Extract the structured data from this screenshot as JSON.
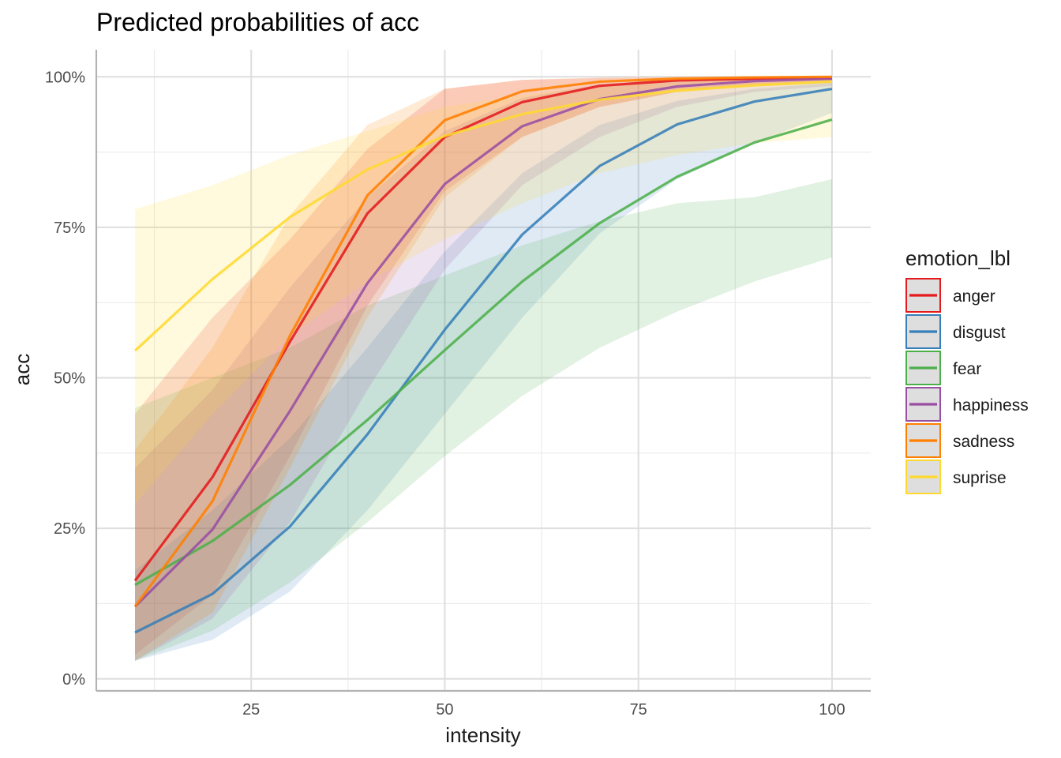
{
  "chart_data": {
    "type": "line",
    "title": "Predicted probabilities of acc",
    "xlabel": "intensity",
    "ylabel": "acc",
    "xlim": [
      5,
      105
    ],
    "ylim": [
      -0.02,
      1.045
    ],
    "x_ticks": [
      25,
      50,
      75,
      100
    ],
    "x_tick_labels": [
      "25",
      "50",
      "75",
      "100"
    ],
    "y_ticks": [
      0,
      0.25,
      0.5,
      0.75,
      1.0
    ],
    "y_tick_labels": [
      "0%",
      "25%",
      "50%",
      "75%",
      "100%"
    ],
    "grid": true,
    "legend_title": "emotion_lbl",
    "legend_position": "right",
    "x": [
      10,
      20,
      30,
      40,
      50,
      60,
      70,
      80,
      90,
      100
    ],
    "series": [
      {
        "name": "anger",
        "color": "#E41A1C",
        "values": [
          0.163,
          0.335,
          0.56,
          0.773,
          0.9,
          0.958,
          0.985,
          0.994,
          0.997,
          0.998
        ],
        "lower": [
          0.04,
          0.14,
          0.37,
          0.62,
          0.81,
          0.9,
          0.95,
          0.975,
          0.985,
          0.99
        ],
        "upper": [
          0.44,
          0.6,
          0.73,
          0.88,
          0.98,
          0.995,
          0.998,
          0.999,
          1.0,
          1.0
        ]
      },
      {
        "name": "disgust",
        "color": "#377EB8",
        "values": [
          0.077,
          0.141,
          0.253,
          0.406,
          0.58,
          0.738,
          0.852,
          0.921,
          0.959,
          0.98
        ],
        "lower": [
          0.03,
          0.065,
          0.145,
          0.28,
          0.44,
          0.6,
          0.74,
          0.83,
          0.89,
          0.94
        ],
        "upper": [
          0.18,
          0.28,
          0.4,
          0.55,
          0.71,
          0.84,
          0.92,
          0.96,
          0.98,
          0.99
        ]
      },
      {
        "name": "fear",
        "color": "#4DAF4A",
        "values": [
          0.156,
          0.229,
          0.322,
          0.43,
          0.546,
          0.66,
          0.757,
          0.834,
          0.891,
          0.929
        ],
        "lower": [
          0.03,
          0.08,
          0.16,
          0.26,
          0.37,
          0.47,
          0.55,
          0.61,
          0.66,
          0.7
        ],
        "upper": [
          0.45,
          0.5,
          0.55,
          0.62,
          0.67,
          0.72,
          0.76,
          0.79,
          0.8,
          0.83
        ]
      },
      {
        "name": "happiness",
        "color": "#984EA3",
        "values": [
          0.12,
          0.248,
          0.445,
          0.657,
          0.822,
          0.918,
          0.963,
          0.984,
          0.993,
          0.997
        ],
        "lower": [
          0.03,
          0.1,
          0.26,
          0.48,
          0.68,
          0.82,
          0.9,
          0.95,
          0.975,
          0.985
        ],
        "upper": [
          0.35,
          0.48,
          0.65,
          0.8,
          0.91,
          0.965,
          0.988,
          0.996,
          0.999,
          1.0
        ]
      },
      {
        "name": "sadness",
        "color": "#FF7F00",
        "values": [
          0.12,
          0.295,
          0.57,
          0.803,
          0.928,
          0.976,
          0.992,
          0.997,
          0.999,
          1.0
        ],
        "lower": [
          0.03,
          0.11,
          0.35,
          0.6,
          0.8,
          0.9,
          0.95,
          0.975,
          0.985,
          0.99
        ],
        "upper": [
          0.38,
          0.55,
          0.77,
          0.92,
          0.98,
          0.995,
          0.999,
          1.0,
          1.0,
          1.0
        ]
      },
      {
        "name": "suprise",
        "color": "#FFD92F",
        "values": [
          0.545,
          0.664,
          0.767,
          0.846,
          0.902,
          0.938,
          0.962,
          0.977,
          0.986,
          0.992
        ],
        "lower": [
          0.29,
          0.44,
          0.57,
          0.66,
          0.73,
          0.79,
          0.84,
          0.87,
          0.89,
          0.9
        ],
        "upper": [
          0.78,
          0.82,
          0.87,
          0.91,
          0.95,
          0.97,
          0.985,
          0.992,
          0.996,
          0.998
        ]
      }
    ]
  }
}
